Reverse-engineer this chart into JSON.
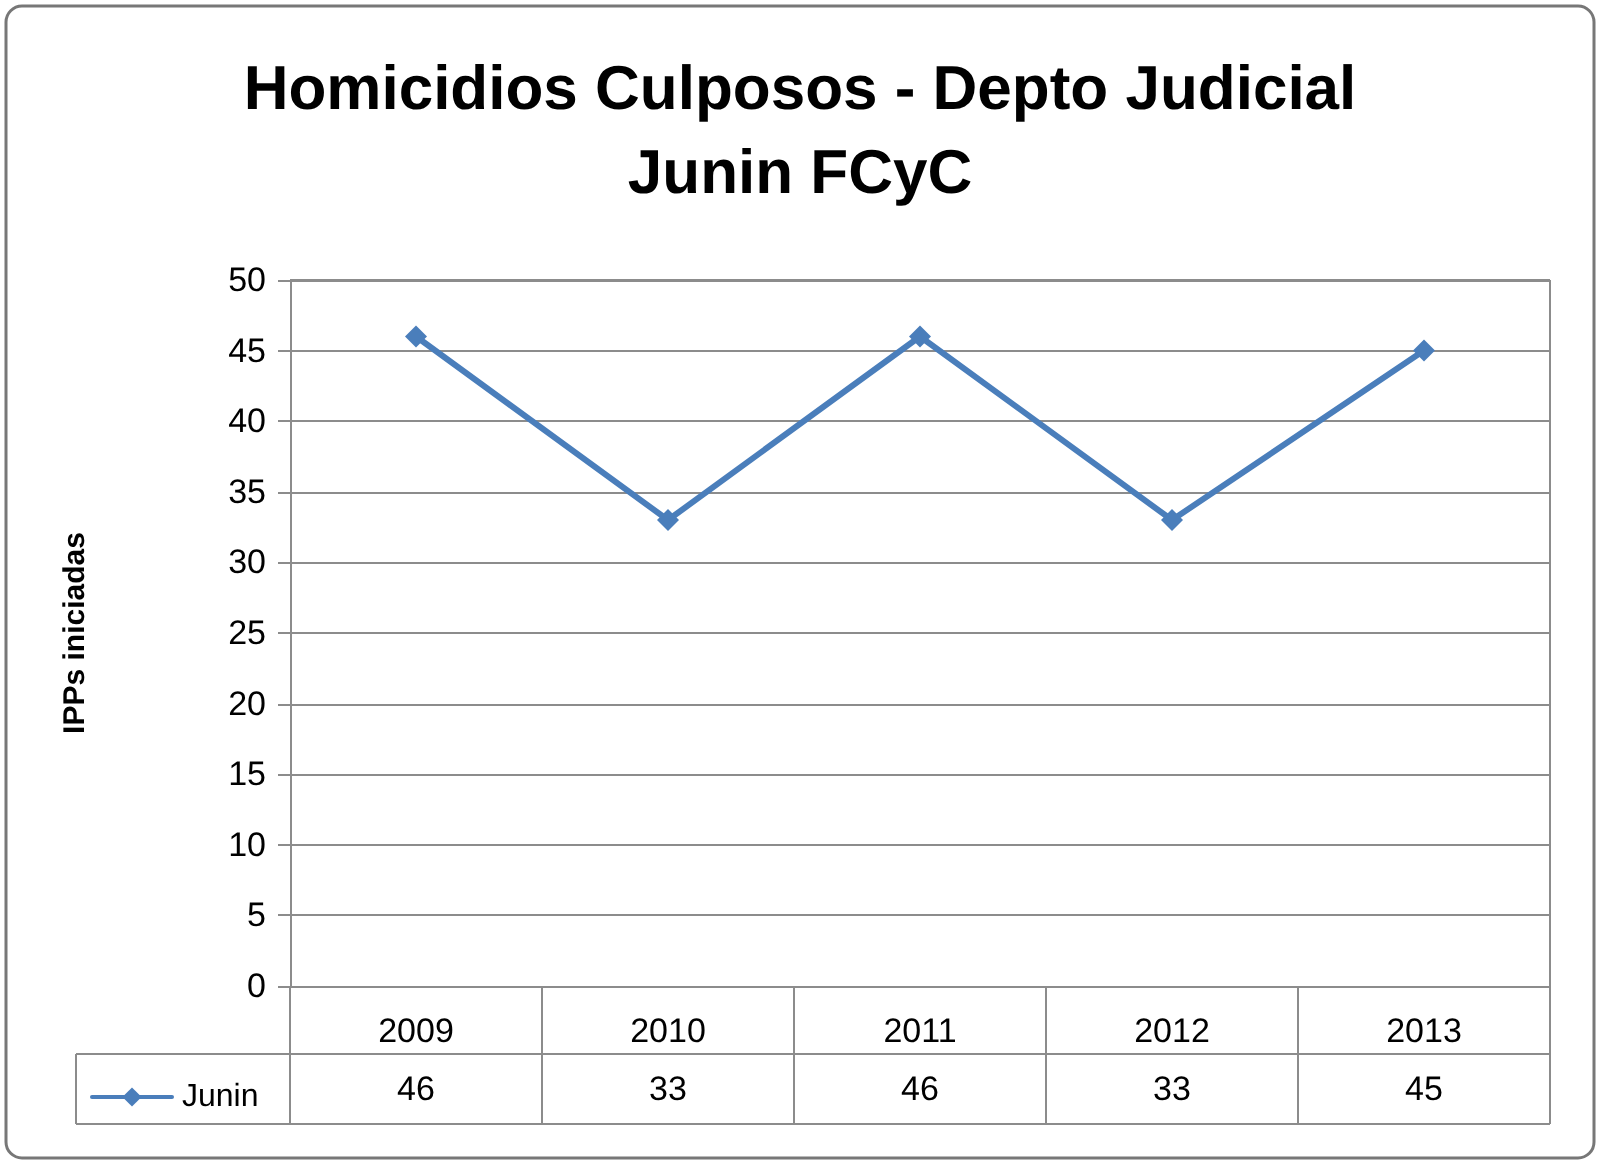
{
  "chart_data": {
    "type": "line",
    "title": "Homicidios Culposos - Depto Judicial\nJunin FCyC",
    "ylabel": "IPPs iniciadas",
    "categories": [
      "2009",
      "2010",
      "2011",
      "2012",
      "2013"
    ],
    "series": [
      {
        "name": "Junin",
        "color": "#4a7ebb",
        "values": [
          46,
          33,
          46,
          33,
          45
        ]
      }
    ],
    "ylim": [
      0,
      50
    ],
    "yticks": [
      0,
      5,
      10,
      15,
      20,
      25,
      30,
      35,
      40,
      45,
      50
    ],
    "grid": "y",
    "legend": "bottom",
    "marker": "diamond",
    "line_style": "solid",
    "data_labels": true
  }
}
